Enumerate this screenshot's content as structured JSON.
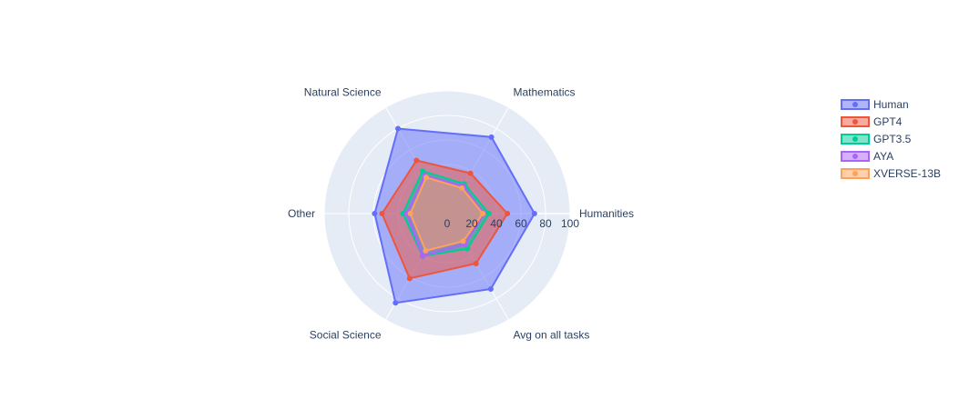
{
  "chart_data": {
    "type": "radar",
    "axes": [
      "Humanities",
      "Avg on all tasks",
      "Social Science",
      "Other",
      "Natural Science",
      "Mathematics"
    ],
    "radial_range": [
      0,
      100
    ],
    "radial_ticks": [
      0,
      20,
      40,
      60,
      80,
      100
    ],
    "fill": "toself",
    "legend_position": "top-right",
    "series": [
      {
        "name": "Human",
        "color": "#636efa",
        "values": [
          71,
          71,
          84,
          59,
          80,
          72
        ]
      },
      {
        "name": "GPT4",
        "color": "#ef553b",
        "values": [
          49,
          47,
          61,
          53,
          50,
          38
        ]
      },
      {
        "name": "GPT3.5",
        "color": "#00cc96",
        "values": [
          34,
          33,
          40,
          36,
          40,
          28
        ]
      },
      {
        "name": "AYA",
        "color": "#ab63fa",
        "values": [
          30,
          29,
          40,
          33,
          36,
          26
        ]
      },
      {
        "name": "XVERSE-13B",
        "color": "#ffa15a",
        "values": [
          29,
          26,
          35,
          30,
          34,
          24
        ]
      }
    ]
  }
}
